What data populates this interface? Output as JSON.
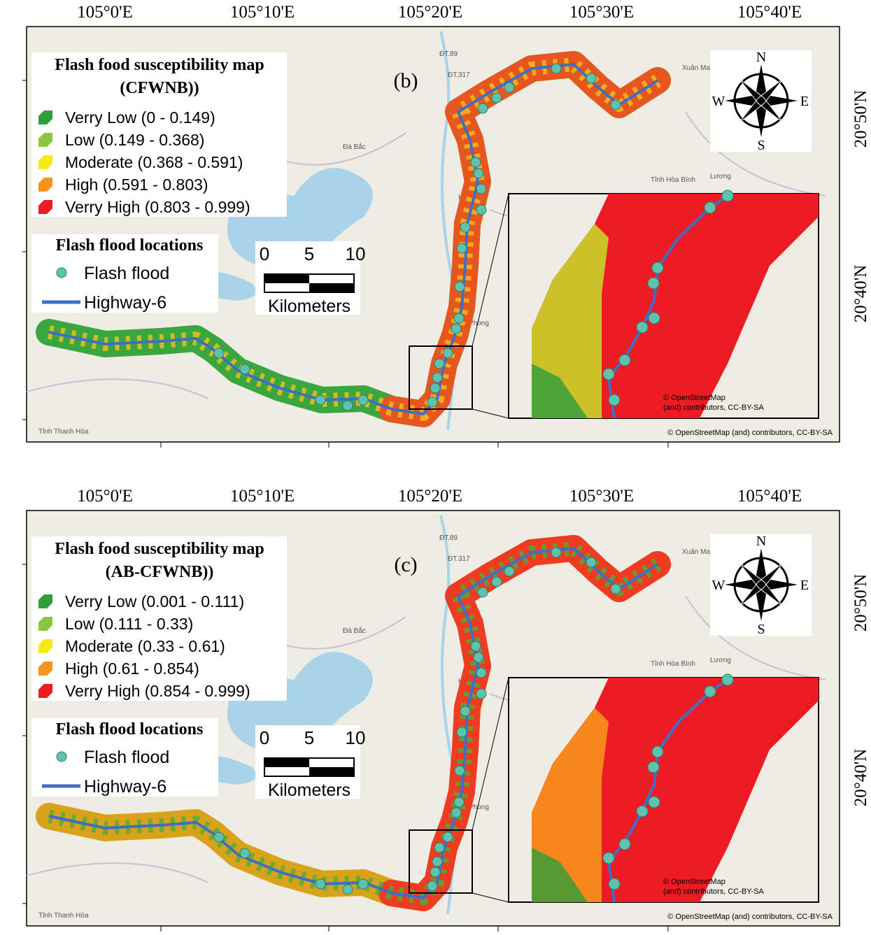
{
  "longitude_labels": [
    "105°0'E",
    "105°10'E",
    "105°20'E",
    "105°30'E",
    "105°40'E"
  ],
  "latitude_labels": [
    "20°50'N",
    "20°40'N"
  ],
  "scale": {
    "ticks": [
      "0",
      "5",
      "10"
    ],
    "unit": "Kilometers"
  },
  "compass": {
    "n": "N",
    "s": "S",
    "w": "W",
    "e": "E"
  },
  "attribution": "© OpenStreetMap (and) contributors, CC-BY-SA",
  "inset_attribution": [
    "© OpenStreetMap",
    "(and) contributors, CC-BY-SA"
  ],
  "place_names": [
    "ĐT.89",
    "ĐT.317",
    "Xuân Mai",
    "Đà Bắc",
    "Tỉnh Hòa Bình",
    "Hòa",
    "Phong",
    "Tỉnh Thanh Hóa",
    "Lương"
  ],
  "panels": [
    {
      "label": "(b)",
      "legend_title": [
        "Flash food susceptibility map",
        "(CFWNB))"
      ],
      "classes": [
        {
          "name": "Verry Low (0 - 0.149)",
          "color": "#2e9e3a"
        },
        {
          "name": "Low (0.149 - 0.368)",
          "color": "#8cc63f"
        },
        {
          "name": "Moderate (0.368 - 0.591)",
          "color": "#f5ea14"
        },
        {
          "name": "High (0.591 - 0.803)",
          "color": "#f7941d"
        },
        {
          "name": "Verry High (0.803 - 0.999)",
          "color": "#ed1c24"
        }
      ],
      "locations_title": "Flash flood locations",
      "flood_label": "Flash flood",
      "highway_label": "Highway-6"
    },
    {
      "label": "(c)",
      "legend_title": [
        "Flash food susceptibility map",
        "(AB-CFWNB))"
      ],
      "classes": [
        {
          "name": "Verry Low (0.001 - 0.111)",
          "color": "#2e9e3a"
        },
        {
          "name": "Low (0.111 - 0.33)",
          "color": "#8cc63f"
        },
        {
          "name": "Moderate (0.33 - 0.61)",
          "color": "#f5ea14"
        },
        {
          "name": "High (0.61 - 0.854)",
          "color": "#f7941d"
        },
        {
          "name": "Verry High (0.854 - 0.999)",
          "color": "#ed1c24"
        }
      ],
      "locations_title": "Flash flood locations",
      "flood_label": "Flash flood",
      "highway_label": "Highway-6"
    }
  ]
}
